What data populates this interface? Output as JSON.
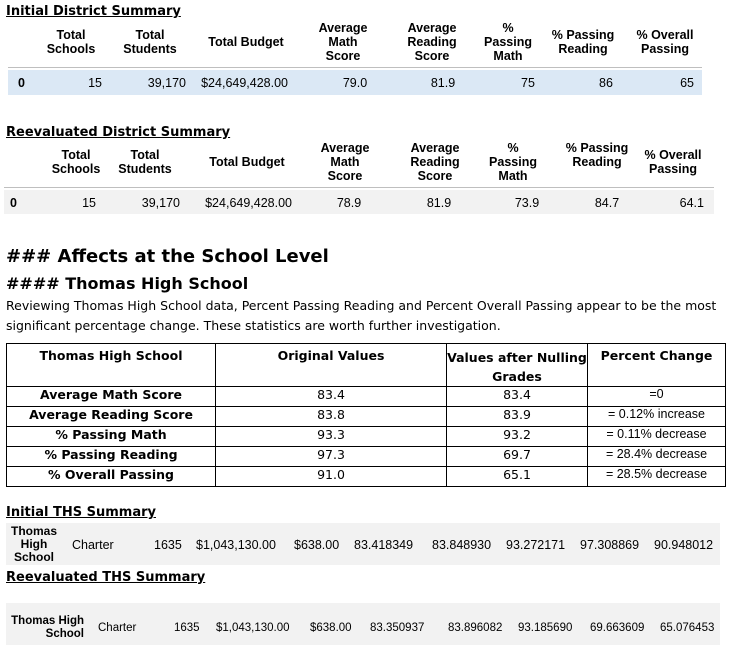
{
  "initial_district": {
    "heading": "Initial District Summary",
    "headers": [
      "Total Schools",
      "Total Students",
      "Total Budget",
      "Average Math Score",
      "Average Reading Score",
      "% Passing Math",
      "% Passing Reading",
      "% Overall Passing"
    ],
    "row": [
      "0",
      "15",
      "39,170",
      "$24,649,428.00",
      "79.0",
      "81.9",
      "75",
      "86",
      "65"
    ]
  },
  "reeval_district": {
    "heading": "Reevaluated District Summary",
    "headers": [
      "Total Schools",
      "Total Students",
      "Total Budget",
      "Average Math Score",
      "Average Reading Score",
      "% Passing Math",
      "% Passing Reading",
      "% Overall Passing"
    ],
    "row": [
      "0",
      "15",
      "39,170",
      "$24,649,428.00",
      "78.9",
      "81.9",
      "73.9",
      "84.7",
      "64.1"
    ]
  },
  "affects": {
    "h3": "###   Affects at the School Level",
    "h4": "#### Thomas High School",
    "paragraph_line1": "Reviewing Thomas High School data, Percent Passing Reading and Percent Overall Passing appear to be the most",
    "paragraph_line2": "significant percentage change.  These statistics are worth further investigation."
  },
  "comparison": {
    "headers": [
      "Thomas High School",
      "Original Values",
      "Values after Nulling Grades",
      "Percent Change"
    ],
    "rows": [
      [
        "Average Math Score",
        "83.4",
        "83.4",
        "=0"
      ],
      [
        "Average Reading Score",
        "83.8",
        "83.9",
        "= 0.12% increase"
      ],
      [
        "% Passing Math",
        "93.3",
        "93.2",
        "= 0.11% decrease"
      ],
      [
        "% Passing Reading",
        "97.3",
        "69.7",
        "= 28.4% decrease"
      ],
      [
        "% Overall Passing",
        "91.0",
        "65.1",
        "= 28.5% decrease"
      ]
    ]
  },
  "initial_ths": {
    "heading": "Initial THS Summary",
    "row": [
      "Thomas High School",
      "Charter",
      "1635",
      "$1,043,130.00",
      "$638.00",
      "83.418349",
      "83.848930",
      "93.272171",
      "97.308869",
      "90.948012"
    ]
  },
  "reeval_ths": {
    "heading": "Reevaluated THS Summary",
    "row": [
      "Thomas High School",
      "Charter",
      "1635",
      "$1,043,130.00",
      "$638.00",
      "83.350937",
      "83.896082",
      "93.185690",
      "69.663609",
      "65.076453"
    ]
  },
  "colors": {
    "highlight_row": "#dbe8f5",
    "alt_row": "#f2f2f2"
  }
}
